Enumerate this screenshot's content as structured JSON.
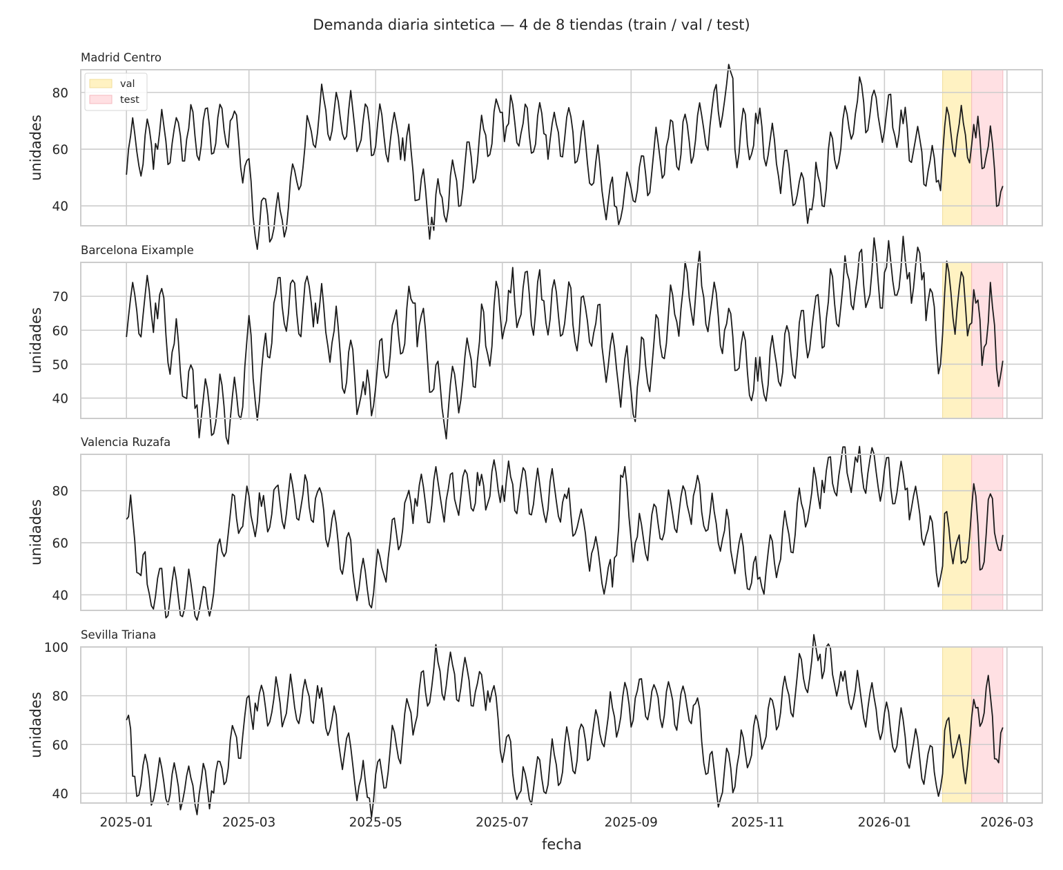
{
  "chart_data": {
    "type": "line",
    "title": "Demanda diaria sintetica — 4 de 8 tiendas (train / val / test)",
    "xlabel": "fecha",
    "ylabel": "unidades",
    "x_start": "2025-01-01",
    "x_end": "2026-02-27",
    "x_ticks": [
      "2025-01",
      "2025-03",
      "2025-05",
      "2025-07",
      "2025-09",
      "2025-11",
      "2026-01",
      "2026-03"
    ],
    "grid": true,
    "series_color": "#1a1a1a",
    "legend": {
      "placement": "top-left",
      "entries": [
        {
          "label": "val",
          "color": "#fff2c2"
        },
        {
          "label": "test",
          "color": "#ffe0e3"
        }
      ]
    },
    "val_range": [
      "2026-01-29",
      "2026-02-12"
    ],
    "test_range": [
      "2026-02-12",
      "2026-02-27"
    ],
    "panels": [
      {
        "title": "Madrid Centro",
        "ylim": [
          33,
          88
        ],
        "yticks": [
          40,
          60,
          80
        ],
        "anchors": [
          [
            "2025-01-01",
            51
          ],
          [
            "2025-01-02",
            60
          ],
          [
            "2025-01-15",
            62
          ],
          [
            "2025-02-20",
            70
          ],
          [
            "2025-02-28",
            56
          ],
          [
            "2025-03-03",
            36
          ],
          [
            "2025-03-17",
            35
          ],
          [
            "2025-04-04",
            74
          ],
          [
            "2025-05-14",
            64
          ],
          [
            "2025-05-28",
            36
          ],
          [
            "2025-07-01",
            73
          ],
          [
            "2025-07-04",
            69
          ],
          [
            "2025-07-22",
            65
          ],
          [
            "2025-08-04",
            66
          ],
          [
            "2025-08-24",
            40
          ],
          [
            "2025-09-18",
            61
          ],
          [
            "2025-10-06",
            67
          ],
          [
            "2025-10-20",
            85
          ],
          [
            "2025-10-21",
            60
          ],
          [
            "2025-11-01",
            69
          ],
          [
            "2025-11-26",
            39
          ],
          [
            "2025-12-19",
            77
          ],
          [
            "2026-01-10",
            69
          ],
          [
            "2026-01-27",
            49
          ],
          [
            "2026-01-30",
            68
          ],
          [
            "2026-02-09",
            65
          ],
          [
            "2026-02-14",
            64
          ],
          [
            "2026-02-20",
            61
          ],
          [
            "2026-02-26",
            45
          ],
          [
            "2026-02-27",
            47
          ]
        ]
      },
      {
        "title": "Barcelona Eixample",
        "ylim": [
          34,
          80
        ],
        "yticks": [
          40,
          50,
          60,
          70
        ],
        "anchors": [
          [
            "2025-01-01",
            58
          ],
          [
            "2025-01-02",
            64
          ],
          [
            "2025-01-15",
            68
          ],
          [
            "2025-02-04",
            38
          ],
          [
            "2025-02-24",
            35
          ],
          [
            "2025-02-28",
            57
          ],
          [
            "2025-03-06",
            39
          ],
          [
            "2025-03-13",
            68
          ],
          [
            "2025-04-02",
            68
          ],
          [
            "2025-04-26",
            41
          ],
          [
            "2025-05-20",
            68
          ],
          [
            "2025-06-02",
            37
          ],
          [
            "2025-07-05",
            71
          ],
          [
            "2025-07-20",
            69
          ],
          [
            "2025-08-15",
            62
          ],
          [
            "2025-09-01",
            42
          ],
          [
            "2025-09-26",
            72
          ],
          [
            "2025-10-05",
            73
          ],
          [
            "2025-11-01",
            45
          ],
          [
            "2025-12-19",
            76
          ],
          [
            "2026-01-01",
            77
          ],
          [
            "2026-01-13",
            77
          ],
          [
            "2026-01-20",
            77
          ],
          [
            "2026-01-28",
            50
          ],
          [
            "2026-01-30",
            71
          ],
          [
            "2026-02-14",
            68
          ],
          [
            "2026-02-18",
            55
          ],
          [
            "2026-02-22",
            67
          ],
          [
            "2026-02-26",
            47
          ],
          [
            "2026-02-27",
            51
          ]
        ]
      },
      {
        "title": "Valencia Ruzafa",
        "ylim": [
          34,
          94
        ],
        "yticks": [
          40,
          60,
          80
        ],
        "anchors": [
          [
            "2025-01-01",
            69
          ],
          [
            "2025-01-02",
            70
          ],
          [
            "2025-01-11",
            44
          ],
          [
            "2025-02-09",
            36
          ],
          [
            "2025-02-20",
            71
          ],
          [
            "2025-03-07",
            74
          ],
          [
            "2025-04-02",
            77
          ],
          [
            "2025-04-27",
            42
          ],
          [
            "2025-05-20",
            77
          ],
          [
            "2025-06-20",
            82
          ],
          [
            "2025-07-01",
            82
          ],
          [
            "2025-08-01",
            77
          ],
          [
            "2025-08-23",
            43
          ],
          [
            "2025-08-27",
            86
          ],
          [
            "2025-09-03",
            60
          ],
          [
            "2025-10-01",
            78
          ],
          [
            "2025-11-01",
            46
          ],
          [
            "2025-12-02",
            84
          ],
          [
            "2025-12-19",
            91
          ],
          [
            "2026-01-12",
            81
          ],
          [
            "2026-01-29",
            51
          ],
          [
            "2026-01-31",
            72
          ],
          [
            "2026-02-07",
            52
          ],
          [
            "2026-02-14",
            78
          ],
          [
            "2026-02-17",
            50
          ],
          [
            "2026-02-22",
            77
          ],
          [
            "2026-02-26",
            57
          ],
          [
            "2026-02-27",
            63
          ]
        ]
      },
      {
        "title": "Sevilla Triana",
        "ylim": [
          36,
          100
        ],
        "yticks": [
          40,
          60,
          80,
          100
        ],
        "anchors": [
          [
            "2025-01-01",
            70
          ],
          [
            "2025-01-02",
            72
          ],
          [
            "2025-01-04",
            47
          ],
          [
            "2025-02-11",
            41
          ],
          [
            "2025-03-04",
            77
          ],
          [
            "2025-04-04",
            79
          ],
          [
            "2025-04-28",
            38
          ],
          [
            "2025-05-29",
            91
          ],
          [
            "2025-06-24",
            82
          ],
          [
            "2025-07-10",
            41
          ],
          [
            "2025-09-03",
            79
          ],
          [
            "2025-10-01",
            76
          ],
          [
            "2025-10-12",
            42
          ],
          [
            "2025-12-01",
            97
          ],
          [
            "2025-12-12",
            86
          ],
          [
            "2026-01-29",
            48
          ],
          [
            "2026-02-01",
            71
          ],
          [
            "2026-02-08",
            50
          ],
          [
            "2026-02-14",
            75
          ],
          [
            "2026-02-21",
            80
          ],
          [
            "2026-02-24",
            54
          ],
          [
            "2026-02-27",
            67
          ]
        ]
      }
    ]
  }
}
